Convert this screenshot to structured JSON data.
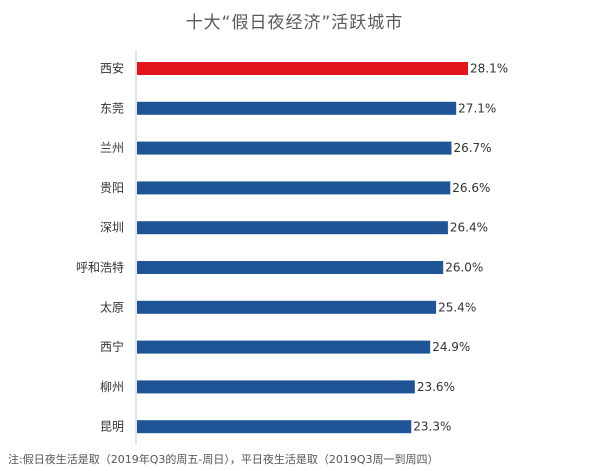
{
  "chart_data": {
    "type": "bar",
    "orientation": "horizontal",
    "title": "十大“假日夜经济”活跃城市",
    "categories": [
      "西安",
      "东莞",
      "兰州",
      "贵阳",
      "深圳",
      "呼和浩特",
      "太原",
      "西宁",
      "柳州",
      "昆明"
    ],
    "values": [
      28.1,
      27.1,
      26.7,
      26.6,
      26.4,
      26.0,
      25.4,
      24.9,
      23.6,
      23.3
    ],
    "value_labels": [
      "28.1%",
      "27.1%",
      "26.7%",
      "26.6%",
      "26.4%",
      "26.0%",
      "25.4%",
      "24.9%",
      "23.6%",
      "23.3%"
    ],
    "unit": "%",
    "xlim": [
      0,
      28.1
    ],
    "grid": false,
    "highlight_index": 0,
    "colors": {
      "bar": "#1f5596",
      "highlight": "#e3141d",
      "axis": "#c8c8c8",
      "text": "#333333"
    },
    "note": "注:假日夜生活是取（2019年Q3的周五-周日），平日夜生活是取（2019Q3周一到周四）"
  }
}
